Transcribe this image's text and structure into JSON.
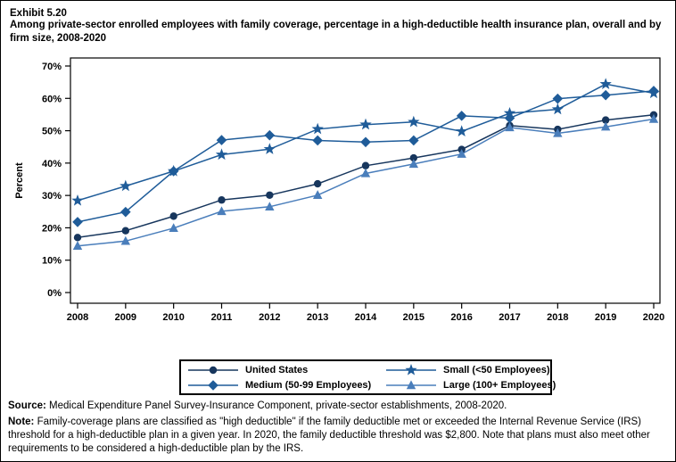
{
  "header": {
    "exhibit_label": "Exhibit 5.20",
    "title": "Among private-sector enrolled employees with family coverage, percentage in a high-deductible health insurance plan, overall and by firm size, 2008-2020"
  },
  "chart_data": {
    "type": "line",
    "title": "",
    "xlabel": "",
    "ylabel": "Percent",
    "x": [
      2008,
      2009,
      2010,
      2011,
      2012,
      2013,
      2014,
      2015,
      2016,
      2017,
      2018,
      2019,
      2020
    ],
    "ylim": [
      0,
      70
    ],
    "ytick_step": 10,
    "ytick_suffix": "%",
    "grid": false,
    "legend_position": "bottom",
    "frame_color": "#000000",
    "series": [
      {
        "name": "United States",
        "marker": "circle",
        "color": "#17365D",
        "values": [
          17.0,
          19.1,
          23.6,
          28.6,
          30.1,
          33.6,
          39.2,
          41.6,
          44.2,
          51.6,
          50.4,
          53.3,
          54.9
        ]
      },
      {
        "name": "Small (<50 Employees)",
        "marker": "star",
        "color": "#1F5C99",
        "values": [
          28.4,
          32.9,
          37.5,
          42.6,
          44.3,
          50.5,
          51.9,
          52.7,
          49.8,
          55.4,
          56.6,
          64.4,
          61.6
        ]
      },
      {
        "name": "Medium (50-99 Employees)",
        "marker": "diamond",
        "color": "#1F5C99",
        "values": [
          21.8,
          24.9,
          37.5,
          47.1,
          48.6,
          47.0,
          46.5,
          47.0,
          54.6,
          53.9,
          59.9,
          61.0,
          62.3
        ]
      },
      {
        "name": "Large (100+ Employees)",
        "marker": "triangle",
        "color": "#4A7EBB",
        "values": [
          14.4,
          15.9,
          19.9,
          25.1,
          26.5,
          30.1,
          36.8,
          39.7,
          42.8,
          51.0,
          49.2,
          51.2,
          53.6
        ]
      }
    ]
  },
  "legend": {
    "items": [
      {
        "label": "United States",
        "marker": "circle",
        "color": "#17365D"
      },
      {
        "label": "Small (<50 Employees)",
        "marker": "star",
        "color": "#1F5C99"
      },
      {
        "label": "Medium (50-99 Employees)",
        "marker": "diamond",
        "color": "#1F5C99"
      },
      {
        "label": "Large (100+ Employees)",
        "marker": "triangle",
        "color": "#4A7EBB"
      }
    ]
  },
  "footer": {
    "source_label": "Source:",
    "source_text": " Medical Expenditure Panel Survey-Insurance Component, private-sector establishments, 2008-2020.",
    "note_label": "Note:",
    "note_text": " Family-coverage plans are classified as \"high deductible\" if the family deductible met or exceeded the Internal Revenue Service (IRS) threshold for a high-deductible plan in a given year. In 2020, the family deductible threshold was $2,800. Note that plans must also meet other requirements to be considered a high-deductible plan by the IRS."
  }
}
